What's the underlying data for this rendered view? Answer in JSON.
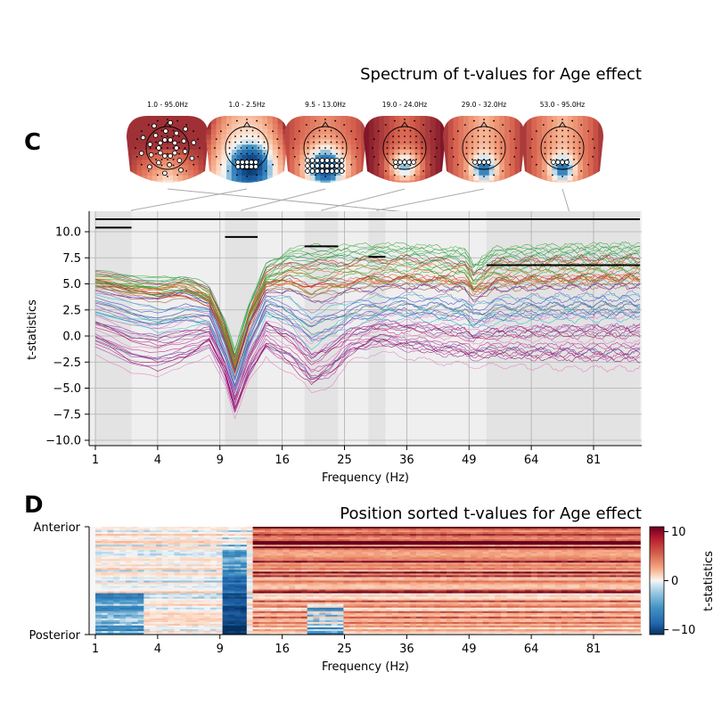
{
  "panel_c": {
    "label": "C",
    "title": "Spectrum of t-values for Age effect",
    "topomaps": [
      {
        "label": "1.0 - 95.0Hz",
        "pattern": "frontal-positive",
        "target_freq": 43.3
      },
      {
        "label": "1.0 - 2.5Hz",
        "pattern": "posterior-negative",
        "target_freq": 2.5
      },
      {
        "label": "9.5 - 13.0Hz",
        "pattern": "posterior-strong-negative",
        "target_freq": 11.2
      },
      {
        "label": "19.0 - 24.0Hz",
        "pattern": "frontal-temporal-positive",
        "target_freq": 21.5
      },
      {
        "label": "29.0 - 32.0Hz",
        "pattern": "temporal-positive",
        "target_freq": 30.5
      },
      {
        "label": "53.0 - 95.0Hz",
        "pattern": "temporal-positive",
        "target_freq": 74.0
      }
    ],
    "chart_data": {
      "type": "line",
      "xlabel": "Frequency (Hz)",
      "ylabel": "t-statistics",
      "x_scale": "sqrt",
      "xlim": [
        1,
        95
      ],
      "ylim": [
        -10.5,
        11.8
      ],
      "xticks": [
        "1",
        "4",
        "9",
        "16",
        "25",
        "36",
        "49",
        "64",
        "81"
      ],
      "yticks": [
        "−10.0",
        "−7.5",
        "−5.0",
        "−2.5",
        "0.0",
        "2.5",
        "5.0",
        "7.5",
        "10.0"
      ],
      "grid": true,
      "shaded_bands": [
        [
          1,
          2.5
        ],
        [
          9.5,
          13.0
        ],
        [
          19.0,
          24.0
        ],
        [
          29.0,
          32.0
        ],
        [
          53.0,
          95.0
        ]
      ],
      "cluster_bars": [
        {
          "x": [
            1,
            95
          ],
          "y": 11.2
        },
        {
          "x": [
            1,
            2.5
          ],
          "y": 10.4
        },
        {
          "x": [
            9.5,
            13.0
          ],
          "y": 9.5
        },
        {
          "x": [
            19.0,
            24.0
          ],
          "y": 8.6
        },
        {
          "x": [
            29.0,
            32.0
          ],
          "y": 7.6
        },
        {
          "x": [
            53.0,
            95.0
          ],
          "y": 6.8
        }
      ],
      "n_channels": 60,
      "representative_channels": [
        {
          "x": [
            1,
            2.5,
            4,
            6,
            8,
            9.5,
            10.5,
            12,
            14,
            17,
            20,
            23,
            26,
            30,
            36,
            42,
            48,
            50,
            55,
            64,
            75,
            95
          ],
          "y": [
            5.5,
            5.2,
            4.9,
            5.1,
            4.0,
            1.0,
            -2.0,
            2.5,
            6.5,
            8.0,
            8.3,
            8.2,
            8.3,
            8.5,
            8.4,
            8.2,
            8.0,
            6.5,
            8.1,
            8.3,
            8.4,
            8.5
          ]
        },
        {
          "x": [
            1,
            2.5,
            4,
            6,
            8,
            9.5,
            10.5,
            12,
            14,
            17,
            20,
            23,
            26,
            30,
            36,
            42,
            48,
            50,
            55,
            64,
            75,
            95
          ],
          "y": [
            5.3,
            4.6,
            4.4,
            4.6,
            3.6,
            0.0,
            -3.0,
            1.5,
            5.0,
            5.6,
            4.9,
            5.2,
            5.4,
            5.6,
            5.7,
            5.6,
            5.5,
            4.5,
            5.5,
            5.6,
            5.7,
            5.8
          ]
        },
        {
          "x": [
            1,
            2.5,
            4,
            6,
            8,
            9.5,
            10.5,
            12,
            14,
            17,
            20,
            23,
            26,
            30,
            36,
            42,
            48,
            50,
            55,
            64,
            75,
            95
          ],
          "y": [
            2.5,
            1.5,
            1.0,
            1.5,
            1.5,
            -2.0,
            -5.0,
            -1.0,
            2.5,
            1.5,
            -0.5,
            0.5,
            1.5,
            2.0,
            2.2,
            2.0,
            1.8,
            1.2,
            1.8,
            2.0,
            2.1,
            2.2
          ]
        },
        {
          "x": [
            1,
            2.5,
            4,
            6,
            8,
            9.5,
            10.5,
            12,
            14,
            17,
            20,
            23,
            26,
            30,
            36,
            42,
            48,
            50,
            55,
            64,
            75,
            95
          ],
          "y": [
            -1.0,
            -3.0,
            -3.5,
            -2.5,
            -1.0,
            -4.0,
            -7.5,
            -4.0,
            -1.5,
            -3.0,
            -5.0,
            -4.0,
            -2.0,
            -1.0,
            -1.5,
            -2.0,
            -2.2,
            -2.4,
            -2.3,
            -2.5,
            -2.6,
            -2.7
          ]
        }
      ]
    }
  },
  "panel_d": {
    "label": "D",
    "title": "Position sorted t-values for Age effect",
    "y_top_label": "Anterior",
    "y_bottom_label": "Posterior",
    "chart_data": {
      "type": "heatmap",
      "xlabel": "Frequency (Hz)",
      "x_scale": "sqrt",
      "xlim": [
        1,
        95
      ],
      "xticks": [
        "1",
        "4",
        "9",
        "16",
        "25",
        "36",
        "49",
        "64",
        "81"
      ],
      "rows": 60,
      "row_order": "anterior-to-posterior",
      "colormap": "RdBu_r",
      "color_range": [
        -11,
        11
      ],
      "colorbar_ticks": [
        "10",
        "0",
        "−10"
      ],
      "colorbar_label": "t-statistics"
    }
  },
  "colors": {
    "band_fill": "#e3e3e3",
    "axes_bg": "#efefef",
    "grid": "#b0b0b0",
    "cluster_bar": "#000000",
    "connector": "#aaaaaa"
  }
}
